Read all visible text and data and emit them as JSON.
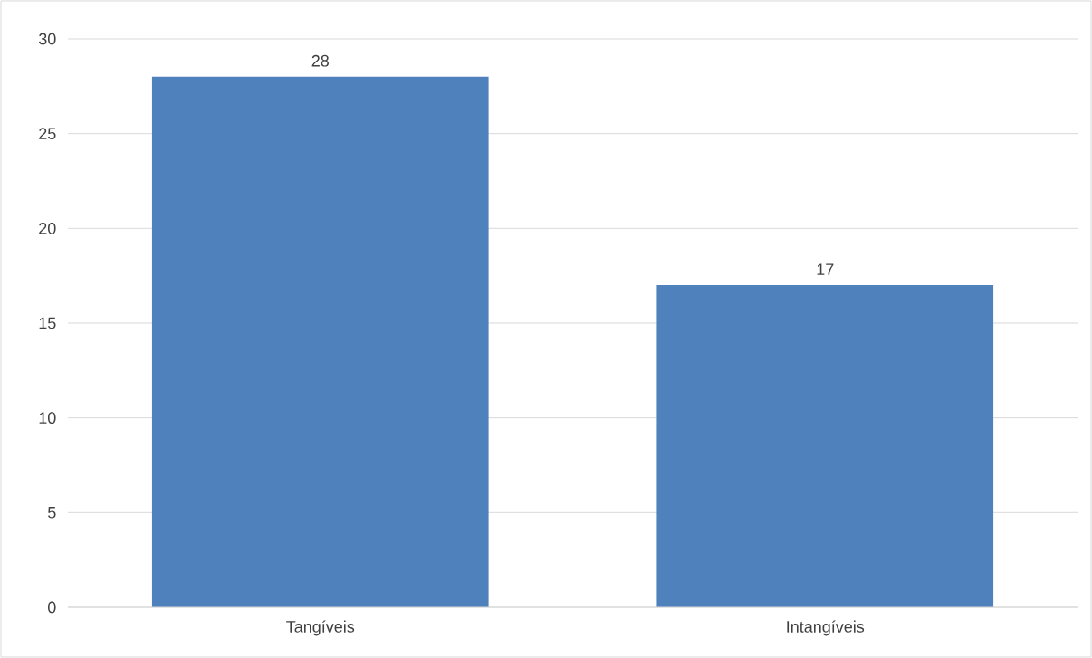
{
  "chart_data": {
    "type": "bar",
    "categories": [
      "Tangíveis",
      "Intangíveis"
    ],
    "values": [
      28,
      17
    ],
    "color": "#4f81bd",
    "ylim": [
      0,
      30
    ],
    "yticks": [
      0,
      5,
      10,
      15,
      20,
      25,
      30
    ],
    "grid": "y",
    "data_labels": true
  }
}
